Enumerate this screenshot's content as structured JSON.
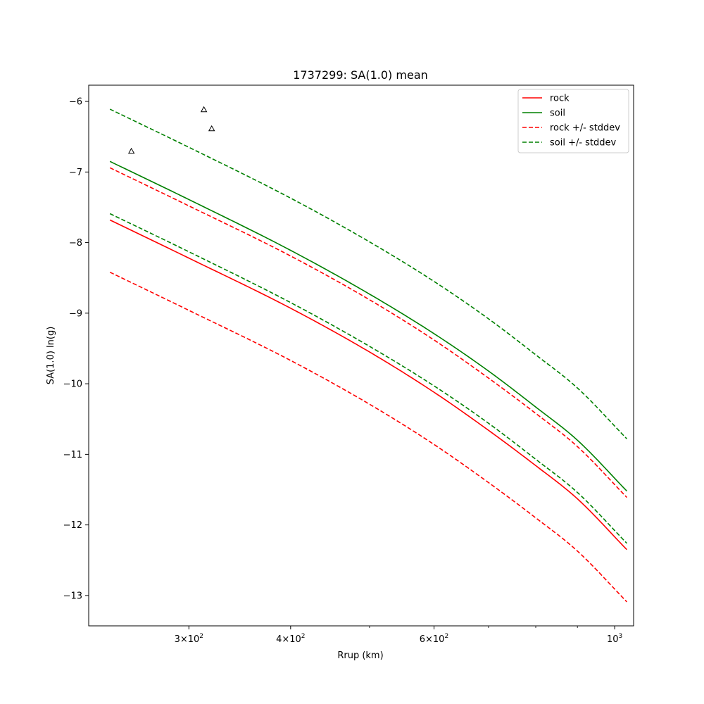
{
  "chart_data": {
    "type": "line",
    "title": "1737299: SA(1.0) mean",
    "xlabel": "Rrup (km)",
    "ylabel": "SA(1.0) ln(g)",
    "x_scale": "log",
    "xlim": [
      226,
      1055
    ],
    "ylim": [
      -13.43,
      -5.77
    ],
    "x_ticks": [
      {
        "value": 300,
        "base": "3",
        "exp": "2"
      },
      {
        "value": 400,
        "base": "4",
        "exp": "2"
      },
      {
        "value": 600,
        "base": "6",
        "exp": "2"
      },
      {
        "value": 1000,
        "base": "",
        "exp": "3"
      }
    ],
    "x_minor_ticks": [
      500,
      700,
      800,
      900
    ],
    "y_ticks": [
      -6,
      -7,
      -8,
      -9,
      -10,
      -11,
      -12,
      -13
    ],
    "y_tick_labels": [
      "−6",
      "−7",
      "−8",
      "−9",
      "−10",
      "−11",
      "−12",
      "−13"
    ],
    "grid": false,
    "legend_position": "upper-right",
    "series": [
      {
        "name": "rock",
        "color": "#ff0000",
        "dash": "solid",
        "x": [
          240,
          300,
          400,
          500,
          600,
          700,
          800,
          900,
          1035
        ],
        "y": [
          -7.68,
          -8.22,
          -8.93,
          -9.55,
          -10.12,
          -10.66,
          -11.16,
          -11.63,
          -12.35
        ]
      },
      {
        "name": "soil",
        "color": "#008000",
        "dash": "solid",
        "x": [
          240,
          300,
          400,
          500,
          600,
          700,
          800,
          900,
          1035
        ],
        "y": [
          -6.85,
          -7.39,
          -8.11,
          -8.73,
          -9.29,
          -9.82,
          -10.33,
          -10.8,
          -11.52
        ]
      },
      {
        "name": "rock +/- stddev",
        "color": "#ff0000",
        "dash": "dashed",
        "x": [
          240,
          300,
          400,
          500,
          600,
          700,
          800,
          900,
          1035
        ],
        "y": [
          -6.94,
          -7.48,
          -8.19,
          -8.81,
          -9.38,
          -9.92,
          -10.42,
          -10.89,
          -11.61
        ]
      },
      {
        "name": "",
        "color": "#ff0000",
        "dash": "dashed",
        "x": [
          240,
          300,
          400,
          500,
          600,
          700,
          800,
          900,
          1035
        ],
        "y": [
          -8.42,
          -8.96,
          -9.67,
          -10.29,
          -10.86,
          -11.4,
          -11.9,
          -12.37,
          -13.09
        ]
      },
      {
        "name": "soil +/- stddev",
        "color": "#008000",
        "dash": "dashed",
        "x": [
          240,
          300,
          400,
          500,
          600,
          700,
          800,
          900,
          1035
        ],
        "y": [
          -6.11,
          -6.65,
          -7.37,
          -7.99,
          -8.55,
          -9.08,
          -9.59,
          -10.06,
          -10.78
        ]
      },
      {
        "name": "",
        "color": "#008000",
        "dash": "dashed",
        "x": [
          240,
          300,
          400,
          500,
          600,
          700,
          800,
          900,
          1035
        ],
        "y": [
          -7.59,
          -8.13,
          -8.85,
          -9.47,
          -10.03,
          -10.56,
          -11.07,
          -11.54,
          -12.26
        ]
      }
    ],
    "observations": {
      "marker": "triangle",
      "color": "#000000",
      "points": [
        {
          "x": 255,
          "y": -6.71
        },
        {
          "x": 313,
          "y": -6.12
        },
        {
          "x": 320,
          "y": -6.39
        }
      ]
    }
  }
}
